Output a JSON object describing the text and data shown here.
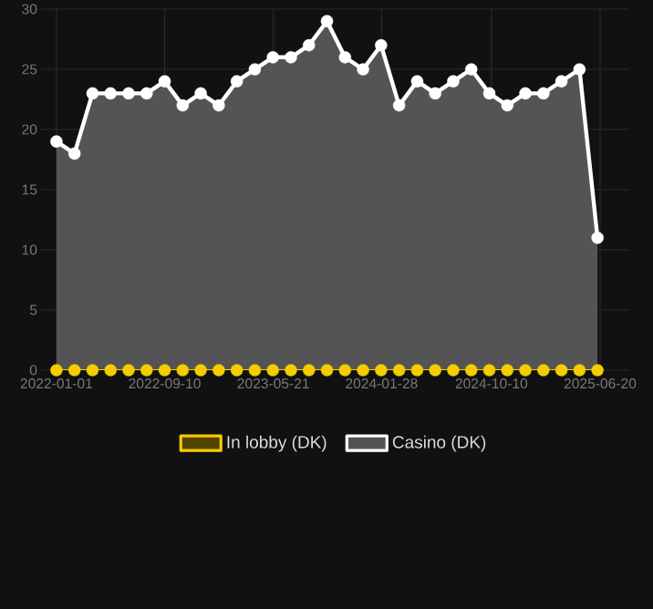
{
  "chart_data": {
    "type": "area",
    "x": [
      "2022-01-01",
      "2022-02-12",
      "2022-03-26",
      "2022-05-07",
      "2022-06-18",
      "2022-07-30",
      "2022-09-10",
      "2022-10-22",
      "2022-12-03",
      "2023-01-14",
      "2023-02-25",
      "2023-04-08",
      "2023-05-20",
      "2023-07-01",
      "2023-08-12",
      "2023-09-23",
      "2023-11-04",
      "2023-12-16",
      "2024-01-27",
      "2024-03-09",
      "2024-04-20",
      "2024-06-01",
      "2024-07-13",
      "2024-08-24",
      "2024-10-05",
      "2024-11-16",
      "2024-12-28",
      "2025-02-08",
      "2025-03-22",
      "2025-05-03",
      "2025-06-14"
    ],
    "series": [
      {
        "name": "In lobby (DK)",
        "type": "line",
        "color": "#f5cc00",
        "values": [
          0,
          0,
          0,
          0,
          0,
          0,
          0,
          0,
          0,
          0,
          0,
          0,
          0,
          0,
          0,
          0,
          0,
          0,
          0,
          0,
          0,
          0,
          0,
          0,
          0,
          0,
          0,
          0,
          0,
          0,
          0
        ]
      },
      {
        "name": "Casino (DK)",
        "color": "#ffffff",
        "values": [
          19,
          18,
          23,
          23,
          23,
          23,
          24,
          22,
          23,
          22,
          24,
          25,
          26,
          26,
          27,
          29,
          26,
          25,
          27,
          22,
          24,
          23,
          24,
          25,
          23,
          22,
          23,
          23,
          24,
          25,
          11
        ]
      }
    ],
    "xlim": [
      "2021-11-24",
      "2025-08-27"
    ],
    "xticks": [
      "2022-01-01",
      "2022-09-10",
      "2023-05-21",
      "2024-01-28",
      "2024-10-10",
      "2025-06-20"
    ],
    "ylim": [
      0,
      30
    ],
    "yticks": [
      0,
      5,
      10,
      15,
      20,
      25,
      30
    ],
    "grid": true,
    "legend": "bottom",
    "marker": "circle"
  }
}
